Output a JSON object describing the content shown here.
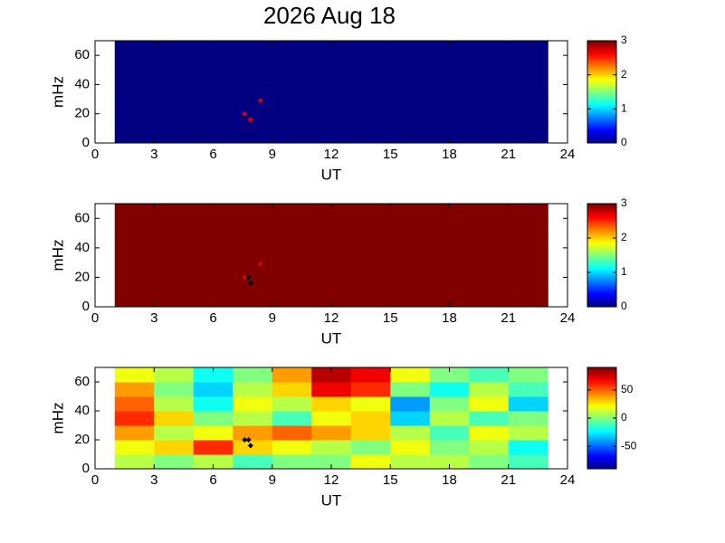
{
  "title": "2026 Aug 18",
  "chart_data": [
    {
      "type": "heatmap",
      "xlabel": "UT",
      "ylabel": "mHz",
      "xlim": [
        0,
        24
      ],
      "ylim": [
        0,
        70
      ],
      "xticks": [
        0,
        3,
        6,
        9,
        12,
        15,
        18,
        21,
        24
      ],
      "yticks": [
        0,
        20,
        40,
        60
      ],
      "clim": [
        0,
        3
      ],
      "cticks": [
        0,
        1,
        2,
        3
      ],
      "colormap": "jet",
      "x": [
        2,
        4,
        6,
        8,
        10,
        12,
        14,
        16,
        18,
        20,
        22
      ],
      "y": [
        5,
        15,
        25,
        35,
        45,
        55,
        65
      ],
      "values": [
        [
          0,
          0,
          0,
          0,
          0,
          0,
          0,
          0,
          0,
          0,
          0
        ],
        [
          0,
          0,
          0,
          0,
          0,
          0,
          0,
          0,
          0,
          0,
          0
        ],
        [
          0,
          0,
          0,
          0,
          0,
          0,
          0,
          0,
          0,
          0,
          0
        ],
        [
          0,
          0,
          0,
          0,
          0,
          0,
          0,
          0,
          0,
          0,
          0
        ],
        [
          0,
          0,
          0,
          0,
          0,
          0,
          0,
          0,
          0,
          0,
          0
        ],
        [
          0,
          0,
          0,
          0,
          0,
          0,
          0,
          0,
          0,
          0,
          0
        ],
        [
          0,
          0,
          0,
          0,
          0,
          0,
          0,
          0,
          0,
          0,
          0
        ]
      ],
      "markers": [
        {
          "x": 7.6,
          "y": 20,
          "color": "#e00000"
        },
        {
          "x": 8.4,
          "y": 29,
          "color": "#e00000"
        },
        {
          "x": 7.9,
          "y": 16,
          "color": "#e00000"
        }
      ]
    },
    {
      "type": "heatmap",
      "xlabel": "UT",
      "ylabel": "mHz",
      "xlim": [
        0,
        24
      ],
      "ylim": [
        0,
        70
      ],
      "xticks": [
        0,
        3,
        6,
        9,
        12,
        15,
        18,
        21,
        24
      ],
      "yticks": [
        0,
        20,
        40,
        60
      ],
      "clim": [
        0,
        3
      ],
      "cticks": [
        0,
        1,
        2,
        3
      ],
      "colormap": "jet",
      "x": [
        2,
        4,
        6,
        8,
        10,
        12,
        14,
        16,
        18,
        20,
        22
      ],
      "y": [
        5,
        15,
        25,
        35,
        45,
        55,
        65
      ],
      "values": [
        [
          3,
          3,
          3,
          3,
          3,
          3,
          3,
          3,
          3,
          3,
          3
        ],
        [
          3,
          3,
          3,
          3,
          3,
          3,
          3,
          3,
          3,
          3,
          3
        ],
        [
          3,
          3,
          3,
          3,
          3,
          3,
          3,
          3,
          3,
          3,
          3
        ],
        [
          3,
          3,
          3,
          3,
          3,
          3,
          3,
          3,
          3,
          3,
          3
        ],
        [
          3,
          3,
          3,
          3,
          3,
          3,
          3,
          3,
          3,
          3,
          3
        ],
        [
          3,
          3,
          3,
          3,
          3,
          3,
          3,
          3,
          3,
          3,
          3
        ],
        [
          3,
          3,
          3,
          3,
          3,
          3,
          3,
          3,
          3,
          3,
          3
        ]
      ],
      "markers": [
        {
          "x": 7.6,
          "y": 20,
          "color": "#e00000"
        },
        {
          "x": 8.4,
          "y": 29,
          "color": "#e00000"
        },
        {
          "x": 7.8,
          "y": 20,
          "color": "#000000"
        },
        {
          "x": 7.9,
          "y": 16,
          "color": "#000000"
        }
      ]
    },
    {
      "type": "heatmap",
      "xlabel": "UT",
      "ylabel": "mHz",
      "xlim": [
        0,
        24
      ],
      "ylim": [
        0,
        70
      ],
      "xticks": [
        0,
        3,
        6,
        9,
        12,
        15,
        18,
        21,
        24
      ],
      "yticks": [
        0,
        20,
        40,
        60
      ],
      "clim": [
        -90,
        90
      ],
      "cticks": [
        -50,
        0,
        50
      ],
      "colormap": "jet",
      "x": [
        2,
        4,
        6,
        8,
        10,
        12,
        14,
        16,
        18,
        20,
        22
      ],
      "y": [
        5,
        15,
        25,
        35,
        45,
        55,
        65
      ],
      "values": [
        [
          10,
          0,
          10,
          -10,
          0,
          0,
          20,
          10,
          10,
          0,
          -10
        ],
        [
          20,
          30,
          60,
          30,
          20,
          10,
          0,
          20,
          0,
          10,
          -20
        ],
        [
          40,
          10,
          20,
          40,
          50,
          40,
          30,
          10,
          -10,
          20,
          10
        ],
        [
          60,
          30,
          0,
          10,
          -10,
          20,
          30,
          -30,
          10,
          -10,
          0
        ],
        [
          50,
          10,
          -20,
          20,
          10,
          30,
          20,
          -40,
          0,
          20,
          -30
        ],
        [
          40,
          0,
          -30,
          10,
          30,
          70,
          60,
          0,
          -20,
          10,
          -10
        ],
        [
          20,
          10,
          -20,
          0,
          40,
          80,
          70,
          20,
          0,
          -10,
          0
        ]
      ],
      "markers": [
        {
          "x": 7.6,
          "y": 20,
          "color": "#000000"
        },
        {
          "x": 7.8,
          "y": 20,
          "color": "#000000"
        },
        {
          "x": 7.9,
          "y": 16,
          "color": "#000000"
        }
      ]
    }
  ]
}
